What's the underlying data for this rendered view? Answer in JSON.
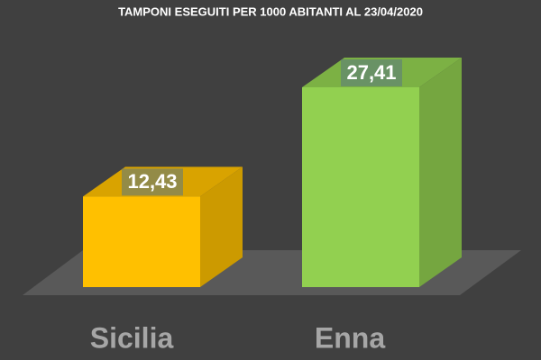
{
  "chart_data": {
    "type": "bar3d",
    "title": "TAMPONI ESEGUITI PER 1000 ABITANTI AL 23/04/2020",
    "categories": [
      "Sicilia",
      "Enna"
    ],
    "values": [
      12.43,
      27.41
    ],
    "value_labels": [
      "12,43",
      "27,41"
    ],
    "colors": [
      "#ffc000",
      "#92d050"
    ]
  }
}
